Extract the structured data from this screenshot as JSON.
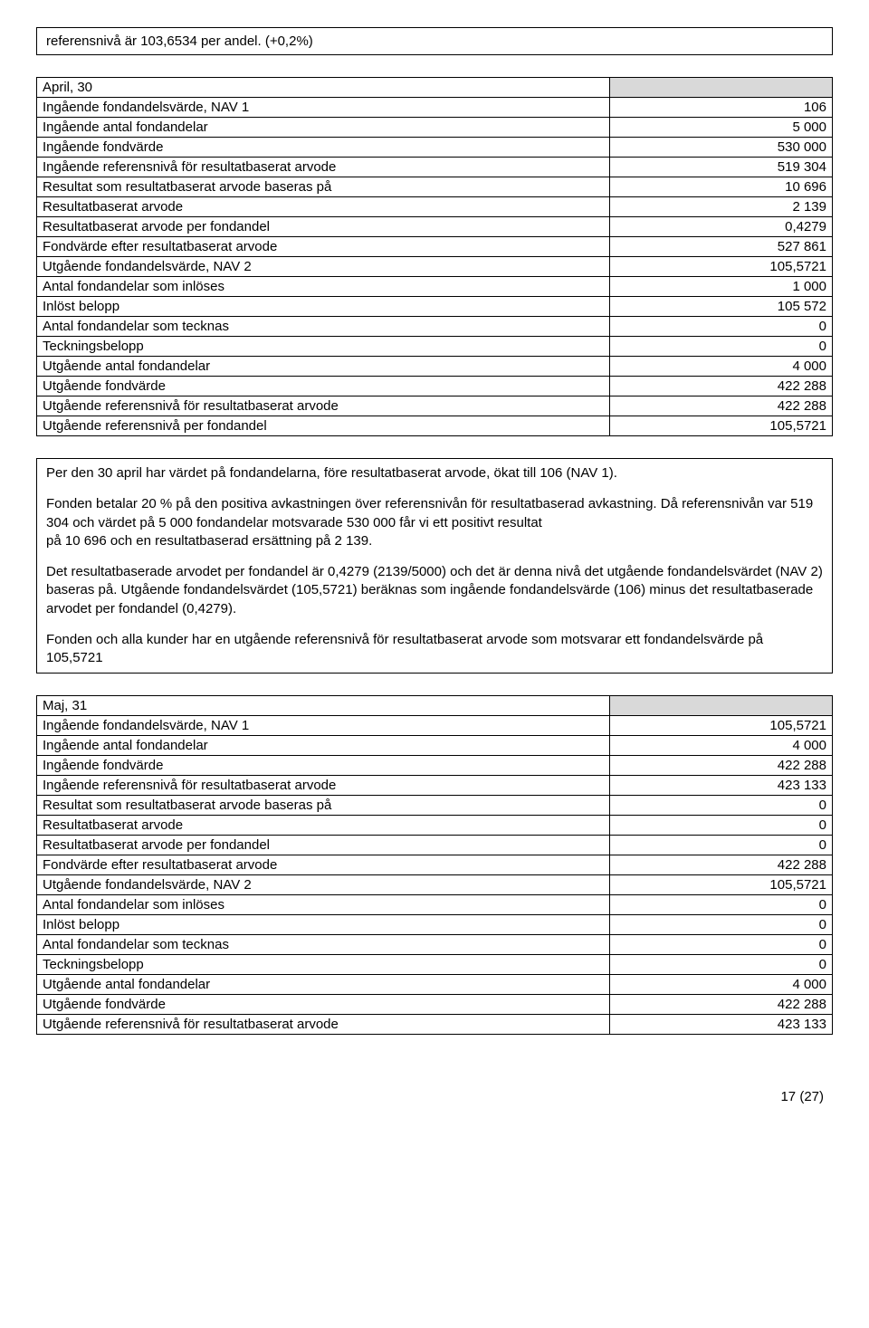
{
  "topBox": {
    "text": "referensnivå är 103,6534 per andel. (+0,2%)"
  },
  "table1": {
    "header": "April, 30",
    "rows": [
      {
        "label": "Ingående fondandelsvärde, NAV 1",
        "value": "106"
      },
      {
        "label": "Ingående antal fondandelar",
        "value": "5 000"
      },
      {
        "label": "Ingående fondvärde",
        "value": "530 000"
      },
      {
        "label": "Ingående referensnivå för resultatbaserat arvode",
        "value": "519 304"
      },
      {
        "label": "Resultat som resultatbaserat arvode baseras på",
        "value": "10 696"
      },
      {
        "label": "Resultatbaserat arvode",
        "value": "2 139"
      },
      {
        "label": "Resultatbaserat arvode per fondandel",
        "value": "0,4279"
      },
      {
        "label": "Fondvärde efter resultatbaserat arvode",
        "value": "527 861"
      },
      {
        "label": "Utgående fondandelsvärde, NAV 2",
        "value": "105,5721"
      },
      {
        "label": "Antal fondandelar som inlöses",
        "value": "1 000"
      },
      {
        "label": "Inlöst belopp",
        "value": "105 572"
      },
      {
        "label": "Antal fondandelar som tecknas",
        "value": "0"
      },
      {
        "label": "Teckningsbelopp",
        "value": "0"
      },
      {
        "label": "Utgående antal fondandelar",
        "value": "4 000"
      },
      {
        "label": "Utgående fondvärde",
        "value": "422 288"
      },
      {
        "label": "Utgående referensnivå för resultatbaserat arvode",
        "value": "422 288"
      },
      {
        "label": "Utgående referensnivå per fondandel",
        "value": "105,5721"
      }
    ]
  },
  "explain": {
    "p1": "Per den 30 april har värdet på fondandelarna, före resultatbaserat arvode, ökat till 106 (NAV 1).",
    "p2": "Fonden betalar 20 % på den positiva avkastningen över referensnivån för resultatbaserad avkastning. Då referensnivån var 519 304 och värdet på 5 000 fondandelar motsvarade 530 000 får vi ett positivt resultat\npå 10 696 och en resultatbaserad ersättning på 2 139.",
    "p3": "Det resultatbaserade arvodet per fondandel är 0,4279 (2139/5000) och det är denna nivå det utgående fondandelsvärdet (NAV 2) baseras på. Utgående fondandelsvärdet (105,5721) beräknas som ingående fondandelsvärde (106) minus det resultatbaserade arvodet per fondandel (0,4279).",
    "p4": "Fonden och alla kunder har en utgående referensnivå för resultatbaserat arvode som motsvarar ett fondandelsvärde på 105,5721"
  },
  "table2": {
    "header": "Maj, 31",
    "rows": [
      {
        "label": "Ingående fondandelsvärde, NAV 1",
        "value": "105,5721"
      },
      {
        "label": "Ingående antal fondandelar",
        "value": "4 000"
      },
      {
        "label": "Ingående fondvärde",
        "value": "422 288"
      },
      {
        "label": "Ingående referensnivå för resultatbaserat arvode",
        "value": "423 133"
      },
      {
        "label": "Resultat som resultatbaserat arvode baseras på",
        "value": "0"
      },
      {
        "label": "Resultatbaserat arvode",
        "value": "0"
      },
      {
        "label": "Resultatbaserat arvode per fondandel",
        "value": "0"
      },
      {
        "label": "Fondvärde efter resultatbaserat arvode",
        "value": "422 288"
      },
      {
        "label": "Utgående fondandelsvärde, NAV 2",
        "value": "105,5721"
      },
      {
        "label": "Antal fondandelar som inlöses",
        "value": "0"
      },
      {
        "label": "Inlöst belopp",
        "value": "0"
      },
      {
        "label": "Antal fondandelar som tecknas",
        "value": "0"
      },
      {
        "label": "Teckningsbelopp",
        "value": "0"
      },
      {
        "label": "Utgående antal fondandelar",
        "value": "4 000"
      },
      {
        "label": "Utgående fondvärde",
        "value": "422 288"
      },
      {
        "label": "Utgående referensnivå för resultatbaserat arvode",
        "value": "423 133"
      }
    ]
  },
  "footer": {
    "page": "17 (27)"
  }
}
